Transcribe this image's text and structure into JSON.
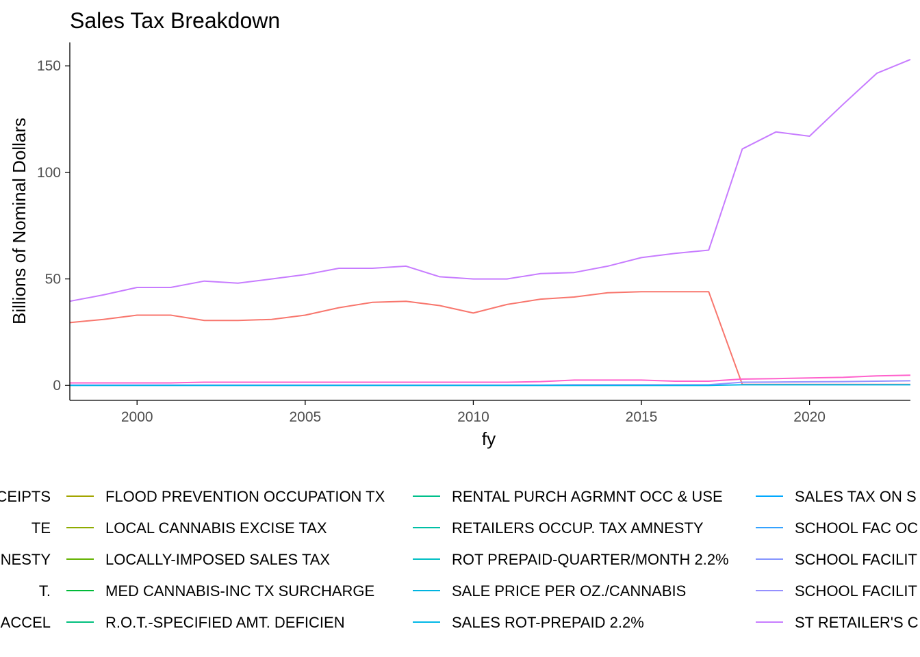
{
  "chart_data": {
    "type": "line",
    "title": "Sales Tax Breakdown",
    "xlabel": "fy",
    "ylabel": "Billions of Nominal Dollars",
    "xlim": [
      1998,
      2023
    ],
    "ylim": [
      -7,
      161
    ],
    "x_ticks": [
      2000,
      2005,
      2010,
      2015,
      2020
    ],
    "y_ticks": [
      0,
      50,
      100,
      150
    ],
    "grid": false,
    "legend_position": "bottom",
    "x": [
      1998,
      1999,
      2000,
      2001,
      2002,
      2003,
      2004,
      2005,
      2006,
      2007,
      2008,
      2009,
      2010,
      2011,
      2012,
      2013,
      2014,
      2015,
      2016,
      2017,
      2018,
      2019,
      2020,
      2021,
      2022,
      2023
    ],
    "series": [
      {
        "color": "#C77CFF",
        "values": [
          39.5,
          42.5,
          46,
          46,
          49,
          48,
          50,
          52,
          55,
          55,
          56,
          51,
          50,
          50,
          52.5,
          53,
          56,
          60,
          62,
          63.5,
          111,
          119,
          117,
          132,
          146.5,
          153
        ]
      },
      {
        "color": "#F8766D",
        "values": [
          29.5,
          31,
          33,
          33,
          30.5,
          30.5,
          31,
          33,
          36.5,
          39,
          39.5,
          37.5,
          34,
          38,
          40.5,
          41.5,
          43.5,
          44,
          44,
          44,
          0.5,
          0.5,
          0.5,
          0.5,
          0.5,
          0.5
        ]
      },
      {
        "color": "#FF61CC",
        "values": [
          1.2,
          1.2,
          1.2,
          1.2,
          1.5,
          1.5,
          1.5,
          1.5,
          1.5,
          1.5,
          1.5,
          1.5,
          1.5,
          1.5,
          1.8,
          2.5,
          2.5,
          2.5,
          2,
          2,
          3,
          3.2,
          3.5,
          3.8,
          4.5,
          4.8
        ]
      },
      {
        "color": "#9590FF",
        "values": [
          0.2,
          0.2,
          0.2,
          0.2,
          0.2,
          0.2,
          0.2,
          0.2,
          0.2,
          0.2,
          0.2,
          0.2,
          0.2,
          0.2,
          0.2,
          0.3,
          0.3,
          0.3,
          0.3,
          0.3,
          1.5,
          1.6,
          1.7,
          1.8,
          2,
          2.2
        ]
      },
      {
        "color": "#00B8E7",
        "values": [
          0,
          0,
          0,
          0,
          0,
          0,
          0,
          0,
          0,
          0,
          0,
          0,
          0,
          0,
          0,
          0,
          0,
          0,
          0,
          0,
          0.3,
          0.3,
          0.3,
          0.3,
          0.3,
          0.3
        ]
      }
    ],
    "legend": [
      {
        "label": "CEIPTS",
        "color": "#F8766D"
      },
      {
        "label": "TE",
        "color": "#E7861B"
      },
      {
        "label": "NESTY",
        "color": "#D39200"
      },
      {
        "label": "T.",
        "color": "#BB9D00"
      },
      {
        "label": "-ACCEL",
        "color": "#ABA300"
      },
      {
        "label": "FLOOD PREVENTION OCCUPATION TX",
        "color": "#A3A500"
      },
      {
        "label": "LOCAL CANNABIS EXCISE TAX",
        "color": "#8EAB00"
      },
      {
        "label": "LOCALLY-IMPOSED SALES TAX",
        "color": "#64B200"
      },
      {
        "label": "MED CANNABIS-INC TX SURCHARGE",
        "color": "#00BA38"
      },
      {
        "label": "R.O.T.-SPECIFIED AMT. DEFICIEN",
        "color": "#00BF7D"
      },
      {
        "label": "RENTAL PURCH AGRMNT OCC & USE",
        "color": "#00C08B"
      },
      {
        "label": "RETAILERS OCCUP. TAX AMNESTY",
        "color": "#00BFA5"
      },
      {
        "label": "ROT PREPAID-QUARTER/MONTH 2.2%",
        "color": "#00BFC4"
      },
      {
        "label": "SALE PRICE PER OZ./CANNABIS",
        "color": "#00B4E0"
      },
      {
        "label": "SALES ROT-PREPAID 2.2%",
        "color": "#00B8E7"
      },
      {
        "label": "SALES TAX ON S",
        "color": "#00A9FF"
      },
      {
        "label": "SCHOOL FAC OC",
        "color": "#35A2FF"
      },
      {
        "label": "SCHOOL FACILIT",
        "color": "#8494FF"
      },
      {
        "label": "SCHOOL FACILIT",
        "color": "#9590FF"
      },
      {
        "label": "ST RETAILER'S C",
        "color": "#C77CFF"
      }
    ]
  }
}
